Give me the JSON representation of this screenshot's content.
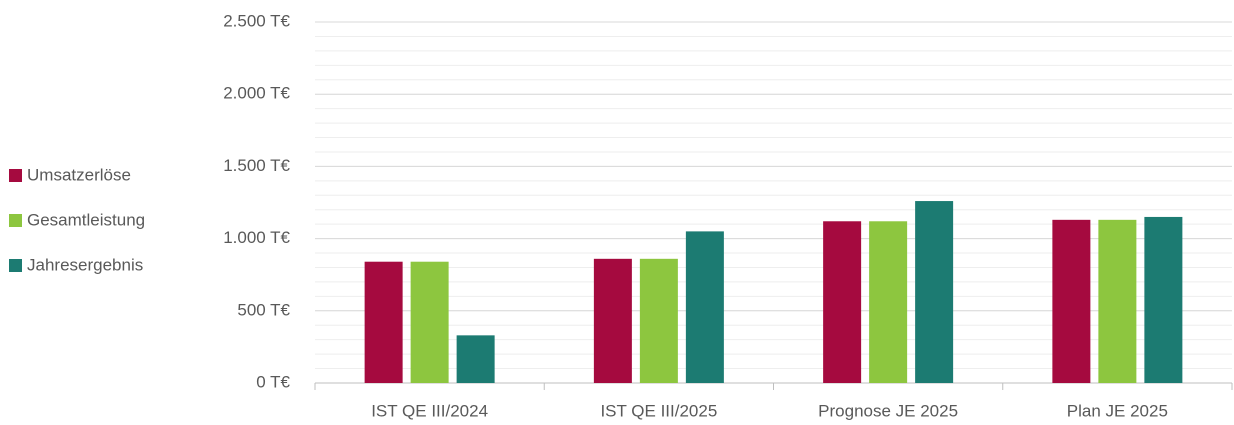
{
  "chart_data": {
    "type": "bar",
    "categories": [
      "IST QE III/2024",
      "IST QE III/2025",
      "Prognose JE 2025",
      "Plan JE 2025"
    ],
    "series": [
      {
        "name": "Umsatzerlöse",
        "color": "#a50a3f",
        "values": [
          840,
          860,
          1120,
          1130
        ]
      },
      {
        "name": "Gesamtleistung",
        "color": "#8dc63f",
        "values": [
          840,
          860,
          1120,
          1130
        ]
      },
      {
        "name": "Jahresergebnis",
        "color": "#1c7b72",
        "values": [
          330,
          1050,
          1260,
          1150
        ]
      }
    ],
    "ylim": [
      0,
      2500
    ],
    "yticks": [
      {
        "value": 0,
        "label": "0 T€"
      },
      {
        "value": 500,
        "label": "500 T€"
      },
      {
        "value": 1000,
        "label": "1.000 T€"
      },
      {
        "value": 1500,
        "label": "1.500 T€"
      },
      {
        "value": 2000,
        "label": "2.000 T€"
      },
      {
        "value": 2500,
        "label": "2.500 T€"
      }
    ],
    "grid": true,
    "minor_grid_step": 100,
    "legend": "left"
  }
}
